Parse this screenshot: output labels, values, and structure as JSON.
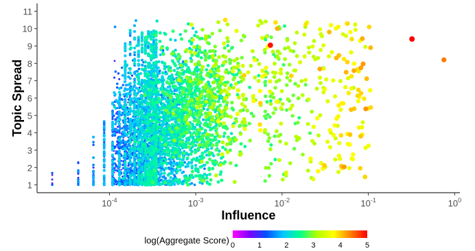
{
  "chart_data": {
    "type": "scatter",
    "title": "",
    "xlabel": "Influence",
    "ylabel": "Topic Spread",
    "x_scale": "log10",
    "x_tick_base": "10",
    "x_tick_exponents": [
      "-4",
      "-3",
      "-2",
      "-1",
      "0"
    ],
    "xlim": [
      1.45e-05,
      1.15
    ],
    "ylim": [
      0.55,
      11.45
    ],
    "y_ticks": [
      "1",
      "2",
      "3",
      "4",
      "5",
      "6",
      "7",
      "8",
      "9",
      "10",
      "11"
    ],
    "grid": false,
    "color_scale": {
      "title": "log(Aggregate Score)",
      "ticks": [
        "0",
        "1",
        "2",
        "3",
        "4",
        "5"
      ],
      "range": [
        0,
        5
      ],
      "colors": [
        "#ff00ff",
        "#8000ff",
        "#0050ff",
        "#00c8ff",
        "#00ff90",
        "#b0ff00",
        "#ffff00",
        "#ff8000",
        "#ff0000"
      ],
      "legend_position": "bottom"
    },
    "highlight_points": [
      {
        "x": 0.32,
        "y": 9.4,
        "score": 5.0
      },
      {
        "x": 0.75,
        "y": 8.2,
        "score": 4.4
      },
      {
        "x": 0.105,
        "y": 6.45,
        "score": 3.7
      },
      {
        "x": 0.085,
        "y": 3.9,
        "score": 3.8
      },
      {
        "x": 0.078,
        "y": 4.3,
        "score": 3.8
      },
      {
        "x": 0.047,
        "y": 2.5,
        "score": 3.6
      },
      {
        "x": 0.062,
        "y": 9.8,
        "score": 3.7
      },
      {
        "x": 0.045,
        "y": 10.1,
        "score": 3.8
      },
      {
        "x": 0.037,
        "y": 10.2,
        "score": 3.7
      },
      {
        "x": 0.0016,
        "y": 6.3,
        "score": 0.5
      },
      {
        "x": 0.0022,
        "y": 10.5,
        "score": 3.9
      }
    ]
  }
}
